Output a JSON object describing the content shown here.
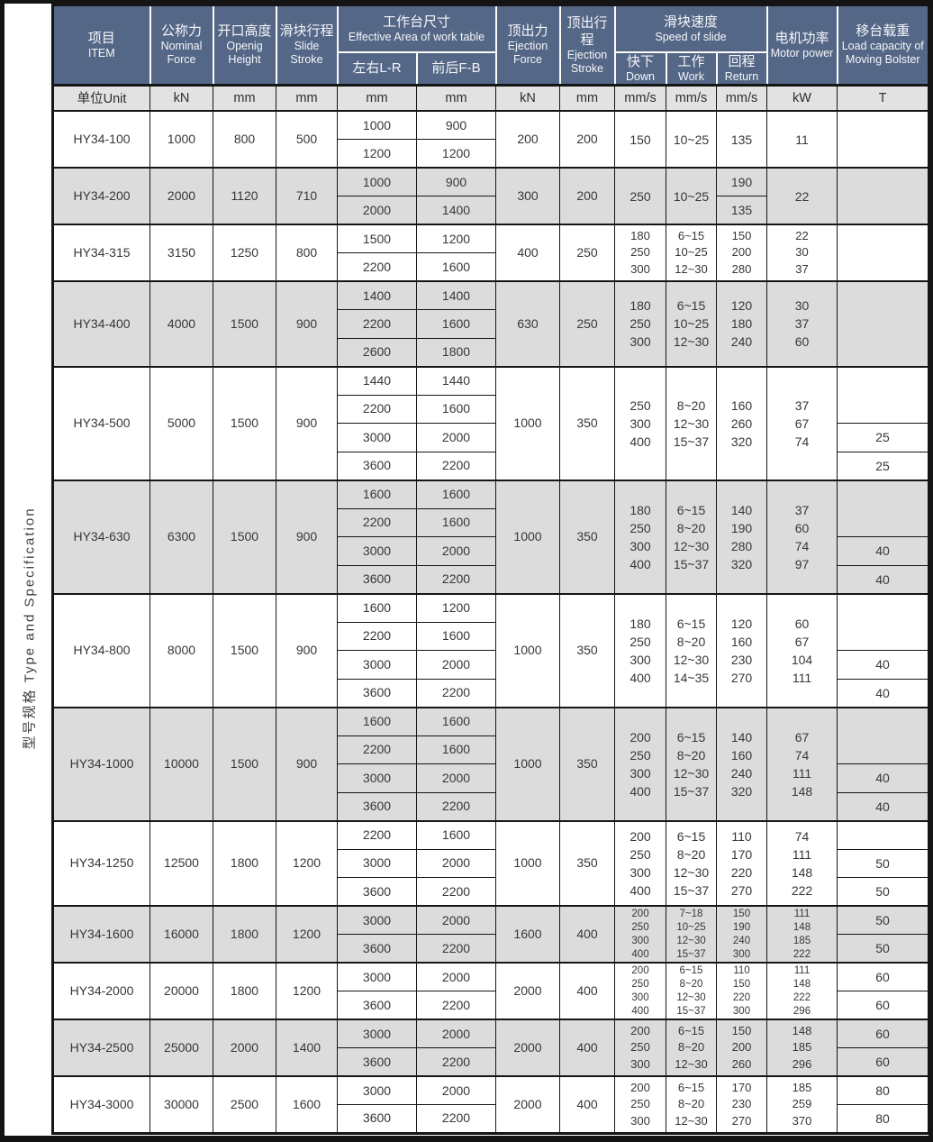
{
  "side_label": "型号规格  Type and Specification",
  "colors": {
    "header_bg": "#546787",
    "stripe": "#dcdcdc",
    "unit_row_bg": "#e2e2e2",
    "border": "#151515"
  },
  "header": {
    "item": {
      "zh": "项目",
      "en": "ITEM"
    },
    "nominal": {
      "zh": "公称力",
      "en": "Nominal Force"
    },
    "opening": {
      "zh": "开口高度",
      "en": "Openig Height"
    },
    "stroke": {
      "zh": "滑块行程",
      "en": "Slide Stroke"
    },
    "worktable": {
      "zh": "工作台尺寸",
      "en": "Effective Area of work table"
    },
    "lr": "左右L-R",
    "fb": "前后F-B",
    "eject_force": {
      "zh": "顶出力",
      "en": "Ejection Force"
    },
    "eject_stroke": {
      "zh": "顶出行程",
      "en": "Ejection Stroke"
    },
    "speed": {
      "zh": "滑块速度",
      "en": "Speed of slide"
    },
    "down": {
      "zh": "快下",
      "en": "Down"
    },
    "work": {
      "zh": "工作",
      "en": "Work"
    },
    "ret": {
      "zh": "回程",
      "en": "Return"
    },
    "motor": {
      "zh": "电机功率",
      "en": "Motor power"
    },
    "load": {
      "zh": "移台载重",
      "en": "Load capacity of Moving Bolster"
    }
  },
  "units": [
    "单位Unit",
    "kN",
    "mm",
    "mm",
    "mm",
    "mm",
    "kN",
    "mm",
    "mm/s",
    "mm/s",
    "mm/s",
    "kW",
    "T"
  ],
  "rows": [
    {
      "model": "HY34-100",
      "nominal": "1000",
      "opening": "800",
      "stroke": "500",
      "table": [
        [
          "1000",
          "900"
        ],
        [
          "1200",
          "1200"
        ]
      ],
      "eject_force": "200",
      "eject_stroke": "200",
      "down": [
        {
          "s": 2,
          "v": [
            "150"
          ]
        }
      ],
      "work": [
        {
          "s": 2,
          "v": [
            "10~25"
          ]
        }
      ],
      "ret": [
        {
          "s": 2,
          "v": [
            "135"
          ]
        }
      ],
      "motor": [
        {
          "s": 2,
          "v": [
            "11"
          ]
        }
      ],
      "load": [
        {
          "s": 2,
          "v": []
        }
      ]
    },
    {
      "model": "HY34-200",
      "nominal": "2000",
      "opening": "1120",
      "stroke": "710",
      "table": [
        [
          "1000",
          "900"
        ],
        [
          "2000",
          "1400"
        ]
      ],
      "eject_force": "300",
      "eject_stroke": "200",
      "down": [
        {
          "s": 2,
          "v": [
            "250"
          ]
        }
      ],
      "work": [
        {
          "s": 2,
          "v": [
            "10~25"
          ]
        }
      ],
      "ret": [
        {
          "s": 1,
          "v": [
            "190"
          ]
        },
        {
          "s": 1,
          "v": [
            "135"
          ]
        }
      ],
      "motor": [
        {
          "s": 2,
          "v": [
            "22"
          ]
        }
      ],
      "load": [
        {
          "s": 2,
          "v": []
        }
      ]
    },
    {
      "model": "HY34-315",
      "nominal": "3150",
      "opening": "1250",
      "stroke": "800",
      "table": [
        [
          "1500",
          "1200"
        ],
        [
          "2200",
          "1600"
        ]
      ],
      "eject_force": "400",
      "eject_stroke": "250",
      "down": [
        {
          "s": 2,
          "v": [
            "180",
            "250",
            "300"
          ]
        }
      ],
      "work": [
        {
          "s": 2,
          "v": [
            "6~15",
            "10~25",
            "12~30"
          ]
        }
      ],
      "ret": [
        {
          "s": 2,
          "v": [
            "150",
            "200",
            "280"
          ]
        }
      ],
      "motor": [
        {
          "s": 2,
          "v": [
            "22",
            "30",
            "37"
          ]
        }
      ],
      "load": [
        {
          "s": 2,
          "v": []
        }
      ]
    },
    {
      "model": "HY34-400",
      "nominal": "4000",
      "opening": "1500",
      "stroke": "900",
      "table": [
        [
          "1400",
          "1400"
        ],
        [
          "2200",
          "1600"
        ],
        [
          "2600",
          "1800"
        ]
      ],
      "eject_force": "630",
      "eject_stroke": "250",
      "down": [
        {
          "s": 3,
          "v": [
            "180",
            "250",
            "300"
          ]
        }
      ],
      "work": [
        {
          "s": 3,
          "v": [
            "6~15",
            "10~25",
            "12~30"
          ]
        }
      ],
      "ret": [
        {
          "s": 3,
          "v": [
            "120",
            "180",
            "240"
          ]
        }
      ],
      "motor": [
        {
          "s": 3,
          "v": [
            "30",
            "37",
            "60"
          ]
        }
      ],
      "load": [
        {
          "s": 3,
          "v": []
        }
      ]
    },
    {
      "model": "HY34-500",
      "nominal": "5000",
      "opening": "1500",
      "stroke": "900",
      "table": [
        [
          "1440",
          "1440"
        ],
        [
          "2200",
          "1600"
        ],
        [
          "3000",
          "2000"
        ],
        [
          "3600",
          "2200"
        ]
      ],
      "eject_force": "1000",
      "eject_stroke": "350",
      "down": [
        {
          "s": 4,
          "v": [
            "250",
            "300",
            "400"
          ]
        }
      ],
      "work": [
        {
          "s": 4,
          "v": [
            "8~20",
            "12~30",
            "15~37"
          ]
        }
      ],
      "ret": [
        {
          "s": 4,
          "v": [
            "160",
            "260",
            "320"
          ]
        }
      ],
      "motor": [
        {
          "s": 4,
          "v": [
            "37",
            "67",
            "74"
          ]
        }
      ],
      "load": [
        {
          "s": 2,
          "v": []
        },
        {
          "s": 1,
          "v": [
            "25"
          ]
        },
        {
          "s": 1,
          "v": [
            "25"
          ]
        }
      ]
    },
    {
      "model": "HY34-630",
      "nominal": "6300",
      "opening": "1500",
      "stroke": "900",
      "table": [
        [
          "1600",
          "1600"
        ],
        [
          "2200",
          "1600"
        ],
        [
          "3000",
          "2000"
        ],
        [
          "3600",
          "2200"
        ]
      ],
      "eject_force": "1000",
      "eject_stroke": "350",
      "down": [
        {
          "s": 4,
          "v": [
            "180",
            "250",
            "300",
            "400"
          ]
        }
      ],
      "work": [
        {
          "s": 4,
          "v": [
            "6~15",
            "8~20",
            "12~30",
            "15~37"
          ]
        }
      ],
      "ret": [
        {
          "s": 4,
          "v": [
            "140",
            "190",
            "280",
            "320"
          ]
        }
      ],
      "motor": [
        {
          "s": 4,
          "v": [
            "37",
            "60",
            "74",
            "97"
          ]
        }
      ],
      "load": [
        {
          "s": 2,
          "v": []
        },
        {
          "s": 1,
          "v": [
            "40"
          ]
        },
        {
          "s": 1,
          "v": [
            "40"
          ]
        }
      ]
    },
    {
      "model": "HY34-800",
      "nominal": "8000",
      "opening": "1500",
      "stroke": "900",
      "table": [
        [
          "1600",
          "1200"
        ],
        [
          "2200",
          "1600"
        ],
        [
          "3000",
          "2000"
        ],
        [
          "3600",
          "2200"
        ]
      ],
      "eject_force": "1000",
      "eject_stroke": "350",
      "down": [
        {
          "s": 4,
          "v": [
            "180",
            "250",
            "300",
            "400"
          ]
        }
      ],
      "work": [
        {
          "s": 4,
          "v": [
            "6~15",
            "8~20",
            "12~30",
            "14~35"
          ]
        }
      ],
      "ret": [
        {
          "s": 4,
          "v": [
            "120",
            "160",
            "230",
            "270"
          ]
        }
      ],
      "motor": [
        {
          "s": 4,
          "v": [
            "60",
            "67",
            "104",
            "111"
          ]
        }
      ],
      "load": [
        {
          "s": 2,
          "v": []
        },
        {
          "s": 1,
          "v": [
            "40"
          ]
        },
        {
          "s": 1,
          "v": [
            "40"
          ]
        }
      ]
    },
    {
      "model": "HY34-1000",
      "nominal": "10000",
      "opening": "1500",
      "stroke": "900",
      "table": [
        [
          "1600",
          "1600"
        ],
        [
          "2200",
          "1600"
        ],
        [
          "3000",
          "2000"
        ],
        [
          "3600",
          "2200"
        ]
      ],
      "eject_force": "1000",
      "eject_stroke": "350",
      "down": [
        {
          "s": 4,
          "v": [
            "200",
            "250",
            "300",
            "400"
          ]
        }
      ],
      "work": [
        {
          "s": 4,
          "v": [
            "6~15",
            "8~20",
            "12~30",
            "15~37"
          ]
        }
      ],
      "ret": [
        {
          "s": 4,
          "v": [
            "140",
            "160",
            "240",
            "320"
          ]
        }
      ],
      "motor": [
        {
          "s": 4,
          "v": [
            "67",
            "74",
            "111",
            "148"
          ]
        }
      ],
      "load": [
        {
          "s": 2,
          "v": []
        },
        {
          "s": 1,
          "v": [
            "40"
          ]
        },
        {
          "s": 1,
          "v": [
            "40"
          ]
        }
      ]
    },
    {
      "model": "HY34-1250",
      "nominal": "12500",
      "opening": "1800",
      "stroke": "1200",
      "table": [
        [
          "2200",
          "1600"
        ],
        [
          "3000",
          "2000"
        ],
        [
          "3600",
          "2200"
        ]
      ],
      "eject_force": "1000",
      "eject_stroke": "350",
      "down": [
        {
          "s": 3,
          "v": [
            "200",
            "250",
            "300",
            "400"
          ]
        }
      ],
      "work": [
        {
          "s": 3,
          "v": [
            "6~15",
            "8~20",
            "12~30",
            "15~37"
          ]
        }
      ],
      "ret": [
        {
          "s": 3,
          "v": [
            "110",
            "170",
            "220",
            "270"
          ]
        }
      ],
      "motor": [
        {
          "s": 3,
          "v": [
            "74",
            "111",
            "148",
            "222"
          ]
        }
      ],
      "load": [
        {
          "s": 1,
          "v": []
        },
        {
          "s": 1,
          "v": [
            "50"
          ]
        },
        {
          "s": 1,
          "v": [
            "50"
          ]
        }
      ]
    },
    {
      "model": "HY34-1600",
      "nominal": "16000",
      "opening": "1800",
      "stroke": "1200",
      "table": [
        [
          "3000",
          "2000"
        ],
        [
          "3600",
          "2200"
        ]
      ],
      "eject_force": "1600",
      "eject_stroke": "400",
      "down": [
        {
          "s": 2,
          "v": [
            "200",
            "250",
            "300",
            "400"
          ]
        }
      ],
      "work": [
        {
          "s": 2,
          "v": [
            "7~18",
            "10~25",
            "12~30",
            "15~37"
          ]
        }
      ],
      "ret": [
        {
          "s": 2,
          "v": [
            "150",
            "190",
            "240",
            "300"
          ]
        }
      ],
      "motor": [
        {
          "s": 2,
          "v": [
            "111",
            "148",
            "185",
            "222"
          ]
        }
      ],
      "load": [
        {
          "s": 1,
          "v": [
            "50"
          ]
        },
        {
          "s": 1,
          "v": [
            "50"
          ]
        }
      ]
    },
    {
      "model": "HY34-2000",
      "nominal": "20000",
      "opening": "1800",
      "stroke": "1200",
      "table": [
        [
          "3000",
          "2000"
        ],
        [
          "3600",
          "2200"
        ]
      ],
      "eject_force": "2000",
      "eject_stroke": "400",
      "down": [
        {
          "s": 2,
          "v": [
            "200",
            "250",
            "300",
            "400"
          ]
        }
      ],
      "work": [
        {
          "s": 2,
          "v": [
            "6~15",
            "8~20",
            "12~30",
            "15~37"
          ]
        }
      ],
      "ret": [
        {
          "s": 2,
          "v": [
            "110",
            "150",
            "220",
            "300"
          ]
        }
      ],
      "motor": [
        {
          "s": 2,
          "v": [
            "111",
            "148",
            "222",
            "296"
          ]
        }
      ],
      "load": [
        {
          "s": 1,
          "v": [
            "60"
          ]
        },
        {
          "s": 1,
          "v": [
            "60"
          ]
        }
      ]
    },
    {
      "model": "HY34-2500",
      "nominal": "25000",
      "opening": "2000",
      "stroke": "1400",
      "table": [
        [
          "3000",
          "2000"
        ],
        [
          "3600",
          "2200"
        ]
      ],
      "eject_force": "2000",
      "eject_stroke": "400",
      "down": [
        {
          "s": 2,
          "v": [
            "200",
            "250",
            "300"
          ]
        }
      ],
      "work": [
        {
          "s": 2,
          "v": [
            "6~15",
            "8~20",
            "12~30"
          ]
        }
      ],
      "ret": [
        {
          "s": 2,
          "v": [
            "150",
            "200",
            "260"
          ]
        }
      ],
      "motor": [
        {
          "s": 2,
          "v": [
            "148",
            "185",
            "296"
          ]
        }
      ],
      "load": [
        {
          "s": 1,
          "v": [
            "60"
          ]
        },
        {
          "s": 1,
          "v": [
            "60"
          ]
        }
      ]
    },
    {
      "model": "HY34-3000",
      "nominal": "30000",
      "opening": "2500",
      "stroke": "1600",
      "table": [
        [
          "3000",
          "2000"
        ],
        [
          "3600",
          "2200"
        ]
      ],
      "eject_force": "2000",
      "eject_stroke": "400",
      "down": [
        {
          "s": 2,
          "v": [
            "200",
            "250",
            "300"
          ]
        }
      ],
      "work": [
        {
          "s": 2,
          "v": [
            "6~15",
            "8~20",
            "12~30"
          ]
        }
      ],
      "ret": [
        {
          "s": 2,
          "v": [
            "170",
            "230",
            "270"
          ]
        }
      ],
      "motor": [
        {
          "s": 2,
          "v": [
            "185",
            "259",
            "370"
          ]
        }
      ],
      "load": [
        {
          "s": 1,
          "v": [
            "80"
          ]
        },
        {
          "s": 1,
          "v": [
            "80"
          ]
        }
      ]
    }
  ]
}
